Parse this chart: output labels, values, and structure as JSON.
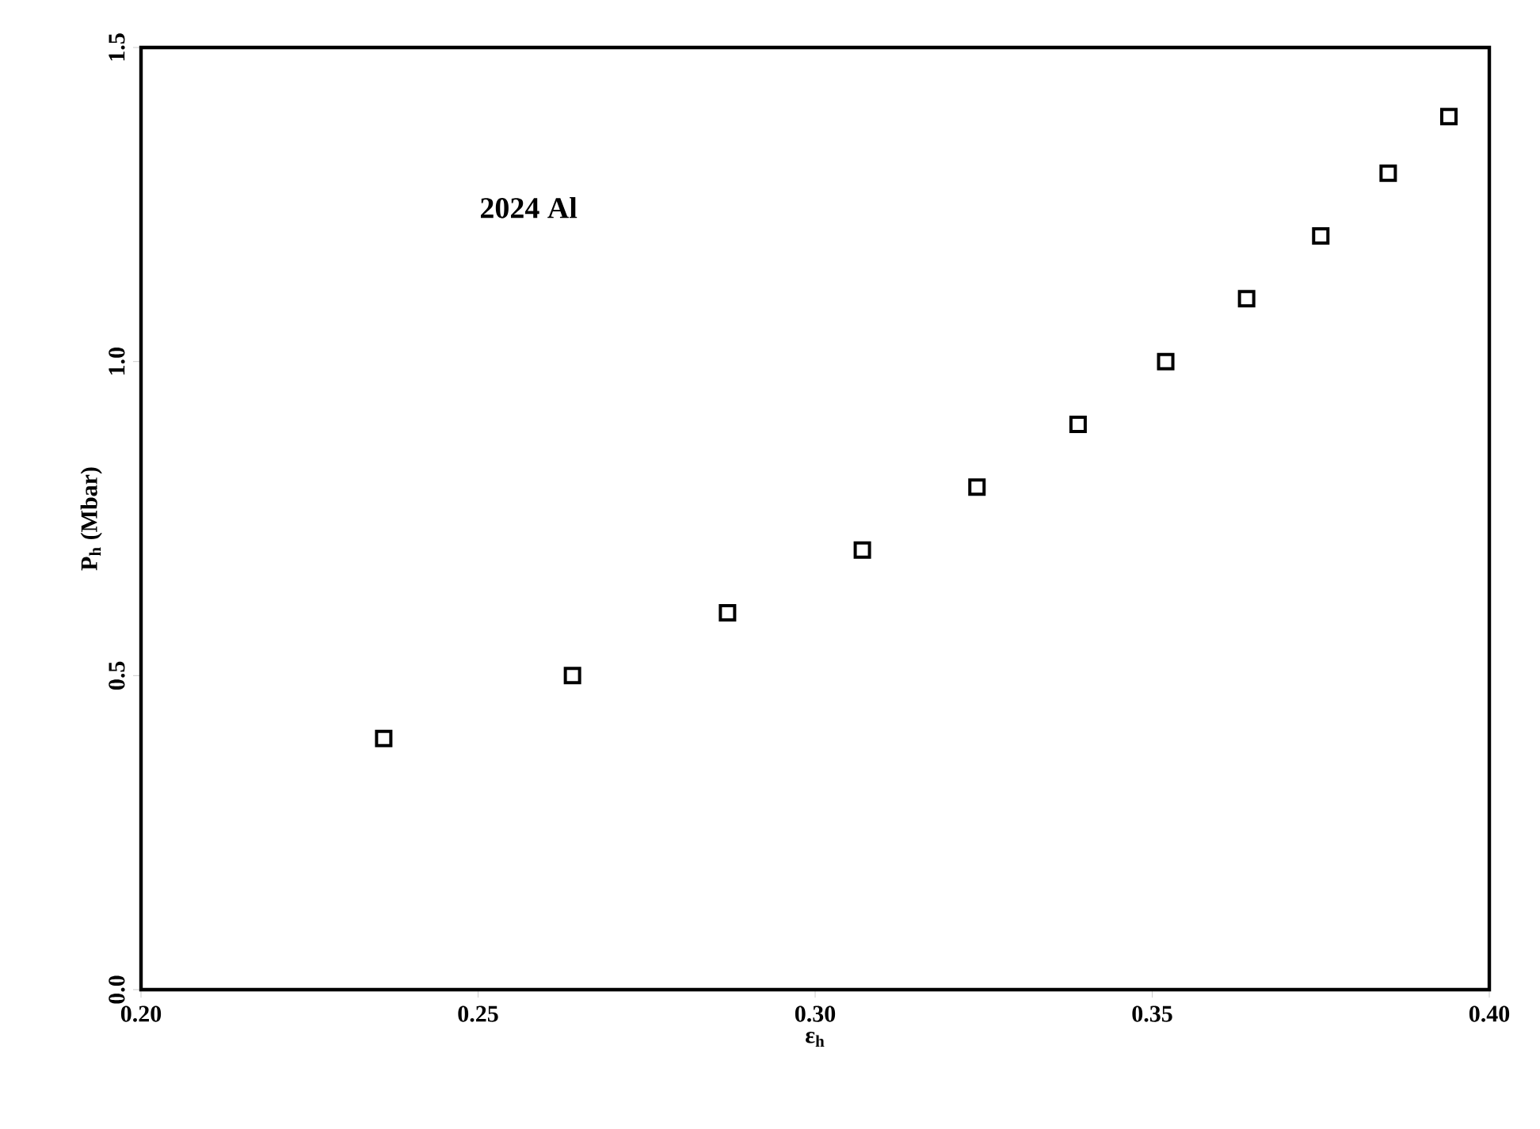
{
  "chart_data": {
    "type": "scatter",
    "xlabel": "ε$_{h}$",
    "ylabel": "P$_{h}$ (Mbar)",
    "annotations": [
      "2024 Al"
    ],
    "x": [
      0.236,
      0.264,
      0.287,
      0.307,
      0.324,
      0.339,
      0.352,
      0.364,
      0.375,
      0.385,
      0.394
    ],
    "series": [
      {
        "color": "#000000",
        "values": [
          0.4,
          0.5,
          0.6,
          0.7,
          0.8,
          0.9,
          1.0,
          1.1,
          1.2,
          1.3,
          1.39
        ]
      }
    ],
    "marker": "square",
    "grid": false,
    "xlim": [
      0.2,
      0.4
    ],
    "xticks": [
      {
        "value": 0.2,
        "label": "0.20"
      },
      0.25,
      {
        "value": 0.3,
        "label": "0.30"
      },
      0.35,
      {
        "value": 0.4,
        "label": "0.40"
      }
    ],
    "ylim": [
      0,
      1.5
    ],
    "yticks": [
      {
        "value": 0,
        "label": "0.0"
      },
      0.5,
      {
        "value": 1,
        "label": "1.0"
      },
      1.5
    ]
  }
}
